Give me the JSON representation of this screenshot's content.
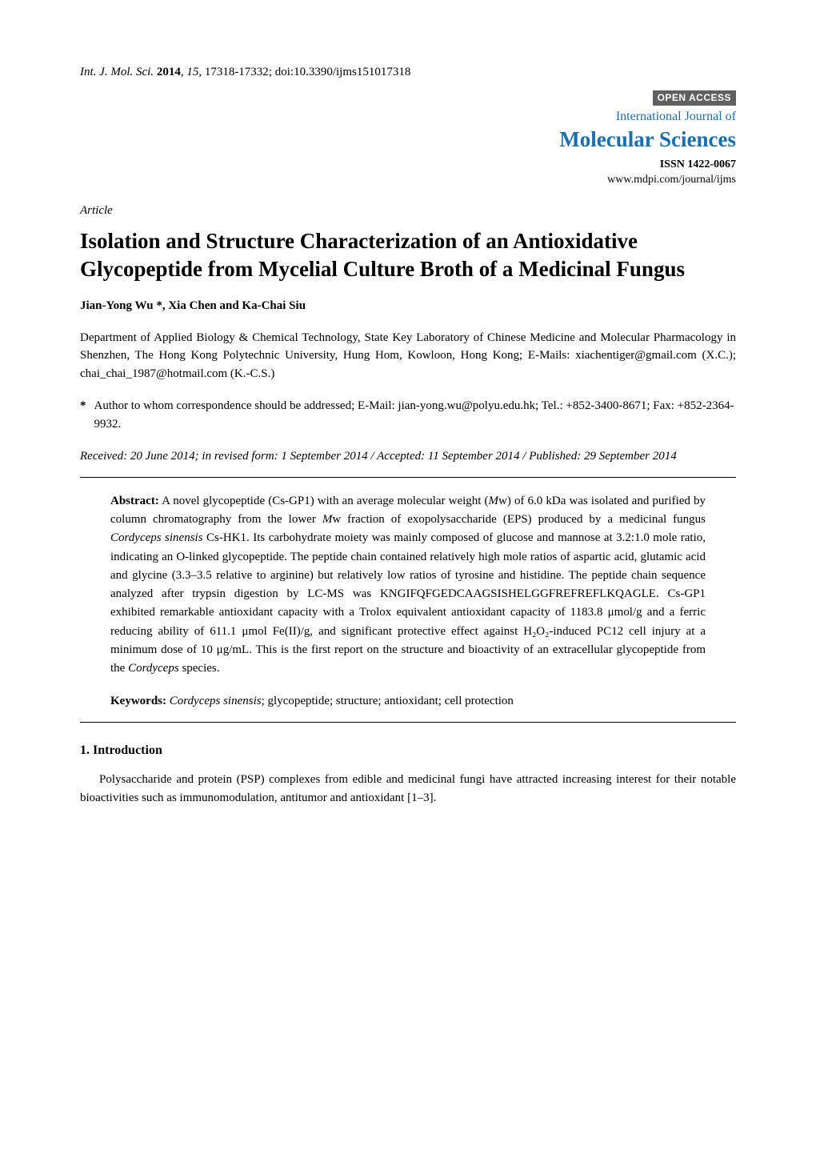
{
  "header": {
    "journal_abbrev": "Int. J. Mol. Sci.",
    "year": "2014",
    "volume": "15",
    "pages": "17318-17332",
    "doi": "doi:10.3390/ijms151017318"
  },
  "journal_block": {
    "open_access": "OPEN ACCESS",
    "line1": "International Journal of",
    "line2": "Molecular Sciences",
    "issn": "ISSN 1422-0067",
    "url": "www.mdpi.com/journal/ijms"
  },
  "article_type": "Article",
  "title": "Isolation and Structure Characterization of an Antioxidative Glycopeptide from Mycelial Culture Broth of a Medicinal Fungus",
  "authors": "Jian-Yong Wu *, Xia Chen and Ka-Chai Siu",
  "affiliation": "Department of Applied Biology & Chemical Technology, State Key Laboratory of Chinese Medicine and Molecular Pharmacology in Shenzhen, The Hong Kong Polytechnic University, Hung Hom, Kowloon, Hong Kong; E-Mails: xiachentiger@gmail.com (X.C.); chai_chai_1987@hotmail.com (K.-C.S.)",
  "correspondence": {
    "star": "*",
    "text": "Author to whom correspondence should be addressed; E-Mail: jian-yong.wu@polyu.edu.hk; Tel.: +852-3400-8671; Fax: +852-2364-9932."
  },
  "dates": "Received: 20 June 2014; in revised form: 1 September 2014 / Accepted: 11 September 2014 / Published: 29 September 2014",
  "abstract": {
    "label": "Abstract:",
    "p1": " A novel glycopeptide (Cs-GP1) with an average molecular weight (",
    "mw1": "M",
    "p2": "w) of 6.0 kDa was isolated and purified by column chromatography from the lower ",
    "mw2": "M",
    "p3": "w fraction of exopolysaccharide (EPS) produced by a medicinal fungus ",
    "species": "Cordyceps sinensis",
    "p4": " Cs-HK1. Its carbohydrate moiety was mainly composed of glucose and mannose at 3.2:1.0 mole ratio, indicating an O-linked glycopeptide. The peptide chain contained relatively high mole ratios of aspartic acid, glutamic acid and glycine (3.3–3.5 relative to arginine) but relatively low ratios of tyrosine and histidine. The peptide chain sequence analyzed after trypsin digestion by LC-MS was KNGIFQFGEDCAAGSISHELGGFREFREFLKQAGLE. Cs-GP1 exhibited remarkable antioxidant capacity with a Trolox equivalent antioxidant capacity of 1183.8 μmol/g and a ferric reducing ability of 611.1 μmol Fe(II)/g, and significant protective effect against H₂O₂-induced PC12 cell injury at a minimum dose of 10 μg/mL. This is the first report on the structure and bioactivity of an extracellular glycopeptide from the ",
    "genus": "Cordyceps",
    "p5": " species."
  },
  "keywords": {
    "label": "Keywords:",
    "species": " Cordyceps sinensis",
    "rest": "; glycopeptide; structure; antioxidant; cell protection"
  },
  "section1_heading": "1. Introduction",
  "section1_body": "Polysaccharide and protein (PSP) complexes from edible and medicinal fungi have attracted increasing interest for their notable bioactivities such as immunomodulation, antitumor and antioxidant [1–3]."
}
